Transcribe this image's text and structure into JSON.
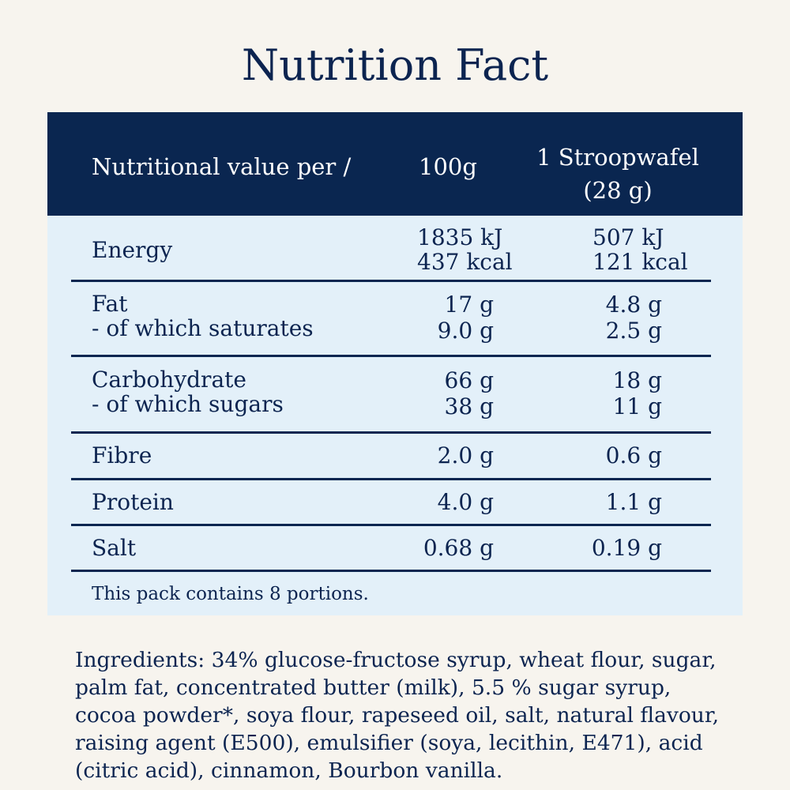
{
  "title": "Nutrition Fact",
  "header": {
    "label": "Nutritional value per /",
    "col_100g": "100g",
    "col_portion_line1": "1 Stroopwafel",
    "col_portion_line2": "(28 g)"
  },
  "rows": {
    "energy": {
      "label": "Energy",
      "v100_kj": "1835 kJ",
      "v100_kcal": "437 kcal",
      "vp_kj": "507 kJ",
      "vp_kcal": "121 kcal"
    },
    "fat": {
      "label": "Fat",
      "sub_label": "-  of which saturates",
      "v100": "17 g",
      "v100_sub": "9.0 g",
      "vp": "4.8 g",
      "vp_sub": "2.5 g"
    },
    "carbohydrate": {
      "label": "Carbohydrate",
      "sub_label": "-  of which sugars",
      "v100": "66 g",
      "v100_sub": "38 g",
      "vp": "18 g",
      "vp_sub": "11 g"
    },
    "fibre": {
      "label": "Fibre",
      "v100": "2.0 g",
      "vp": "0.6 g"
    },
    "protein": {
      "label": "Protein",
      "v100": "4.0 g",
      "vp": "1.1 g"
    },
    "salt": {
      "label": "Salt",
      "v100": "0.68 g",
      "vp": "0.19 g"
    }
  },
  "note": "This pack contains 8 portions.",
  "ingredients": "Ingredients: 34% glucose-fructose syrup, wheat flour, sugar, palm fat, concentrated butter (milk), 5.5 % sugar syrup, cocoa powder*, soya flour, rapeseed oil, salt, natural flavour, raising agent (E500), emulsifier (soya, lecithin, E471), acid (citric acid), cinnamon, Bourbon vanilla.",
  "colors": {
    "navy": "#0a2650",
    "panel": "#e3f0f9",
    "background": "#f7f4ee"
  }
}
